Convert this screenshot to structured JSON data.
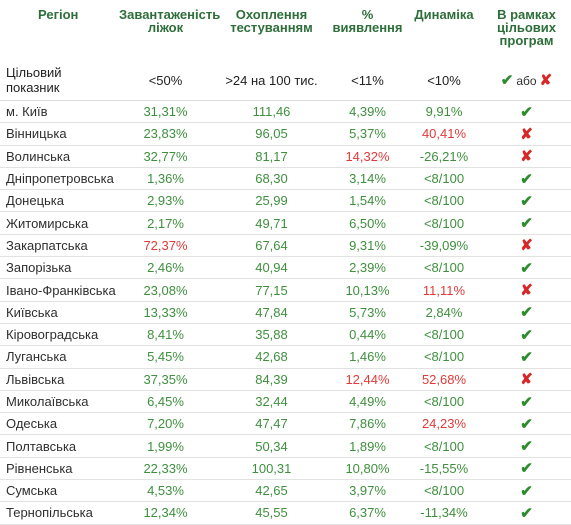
{
  "headers": {
    "region": "Регіон",
    "occupancy": "Завантаженість ліжок",
    "testing": "Охоплення тестуванням",
    "detection": "% виявлення",
    "dynamics": "Динаміка",
    "programs": "В рамках цільових програм"
  },
  "target": {
    "label": "Цільовий показник",
    "occupancy": "<50%",
    "testing": ">24 на 100 тис.",
    "detection": "<11%",
    "dynamics": "<10%",
    "or_text": "або"
  },
  "colors": {
    "green": "#3f8f3f",
    "red": "#e03a3a",
    "header": "#2e6e3a"
  },
  "rows": [
    {
      "region": "м. Київ",
      "occupancy": "31,31%",
      "testing": "111,46",
      "detection": "4,39%",
      "dynamics": "9,91%",
      "status": "check",
      "occ_red": false,
      "det_red": false,
      "dyn_red": false,
      "dyn_gray": false
    },
    {
      "region": "Вінницька",
      "occupancy": "23,83%",
      "testing": "96,05",
      "detection": "5,37%",
      "dynamics": "40,41%",
      "status": "cross",
      "occ_red": false,
      "det_red": false,
      "dyn_red": true,
      "dyn_gray": false
    },
    {
      "region": "Волинська",
      "occupancy": "32,77%",
      "testing": "81,17",
      "detection": "14,32%",
      "dynamics": "-26,21%",
      "status": "cross",
      "occ_red": false,
      "det_red": true,
      "dyn_red": false,
      "dyn_gray": false
    },
    {
      "region": "Дніпропетровська",
      "occupancy": "1,36%",
      "testing": "68,30",
      "detection": "3,14%",
      "dynamics": "<8/100",
      "status": "check",
      "occ_red": false,
      "det_red": false,
      "dyn_red": false,
      "dyn_gray": false
    },
    {
      "region": "Донецька",
      "occupancy": "2,93%",
      "testing": "25,99",
      "detection": "1,54%",
      "dynamics": "<8/100",
      "status": "check",
      "occ_red": false,
      "det_red": false,
      "dyn_red": false,
      "dyn_gray": false
    },
    {
      "region": "Житомирська",
      "occupancy": "2,17%",
      "testing": "49,71",
      "detection": "6,50%",
      "dynamics": "<8/100",
      "status": "check",
      "occ_red": false,
      "det_red": false,
      "dyn_red": false,
      "dyn_gray": false
    },
    {
      "region": "Закарпатська",
      "occupancy": "72,37%",
      "testing": "67,64",
      "detection": "9,31%",
      "dynamics": "-39,09%",
      "status": "cross",
      "occ_red": true,
      "det_red": false,
      "dyn_red": false,
      "dyn_gray": false
    },
    {
      "region": "Запорізька",
      "occupancy": "2,46%",
      "testing": "40,94",
      "detection": "2,39%",
      "dynamics": "<8/100",
      "status": "check",
      "occ_red": false,
      "det_red": false,
      "dyn_red": false,
      "dyn_gray": false
    },
    {
      "region": "Івано-Франківська",
      "occupancy": "23,08%",
      "testing": "77,15",
      "detection": "10,13%",
      "dynamics": "11,11%",
      "status": "cross",
      "occ_red": false,
      "det_red": false,
      "dyn_red": true,
      "dyn_gray": false
    },
    {
      "region": "Київська",
      "occupancy": "13,33%",
      "testing": "47,84",
      "detection": "5,73%",
      "dynamics": "2,84%",
      "status": "check",
      "occ_red": false,
      "det_red": false,
      "dyn_red": false,
      "dyn_gray": false
    },
    {
      "region": "Кіровоградська",
      "occupancy": "8,41%",
      "testing": "35,88",
      "detection": "0,44%",
      "dynamics": "<8/100",
      "status": "check",
      "occ_red": false,
      "det_red": false,
      "dyn_red": false,
      "dyn_gray": false
    },
    {
      "region": "Луганська",
      "occupancy": "5,45%",
      "testing": "42,68",
      "detection": "1,46%",
      "dynamics": "<8/100",
      "status": "check",
      "occ_red": false,
      "det_red": false,
      "dyn_red": false,
      "dyn_gray": false
    },
    {
      "region": "Львівська",
      "occupancy": "37,35%",
      "testing": "84,39",
      "detection": "12,44%",
      "dynamics": "52,68%",
      "status": "cross",
      "occ_red": false,
      "det_red": true,
      "dyn_red": true,
      "dyn_gray": false
    },
    {
      "region": "Миколаївська",
      "occupancy": "6,45%",
      "testing": "32,44",
      "detection": "4,49%",
      "dynamics": "<8/100",
      "status": "check",
      "occ_red": false,
      "det_red": false,
      "dyn_red": false,
      "dyn_gray": false
    },
    {
      "region": "Одеська",
      "occupancy": "7,20%",
      "testing": "47,47",
      "detection": "7,86%",
      "dynamics": "24,23%",
      "status": "check",
      "occ_red": false,
      "det_red": false,
      "dyn_red": true,
      "dyn_gray": false
    },
    {
      "region": "Полтавська",
      "occupancy": "1,99%",
      "testing": "50,34",
      "detection": "1,89%",
      "dynamics": "<8/100",
      "status": "check",
      "occ_red": false,
      "det_red": false,
      "dyn_red": false,
      "dyn_gray": false
    },
    {
      "region": "Рівненська",
      "occupancy": "22,33%",
      "testing": "100,31",
      "detection": "10,80%",
      "dynamics": "-15,55%",
      "status": "check",
      "occ_red": false,
      "det_red": false,
      "dyn_red": false,
      "dyn_gray": false
    },
    {
      "region": "Сумська",
      "occupancy": "4,53%",
      "testing": "42,65",
      "detection": "3,97%",
      "dynamics": "<8/100",
      "status": "check",
      "occ_red": false,
      "det_red": false,
      "dyn_red": false,
      "dyn_gray": false
    },
    {
      "region": "Тернопільська",
      "occupancy": "12,34%",
      "testing": "45,55",
      "detection": "6,37%",
      "dynamics": "-11,34%",
      "status": "check",
      "occ_red": false,
      "det_red": false,
      "dyn_red": false,
      "dyn_gray": false
    }
  ]
}
